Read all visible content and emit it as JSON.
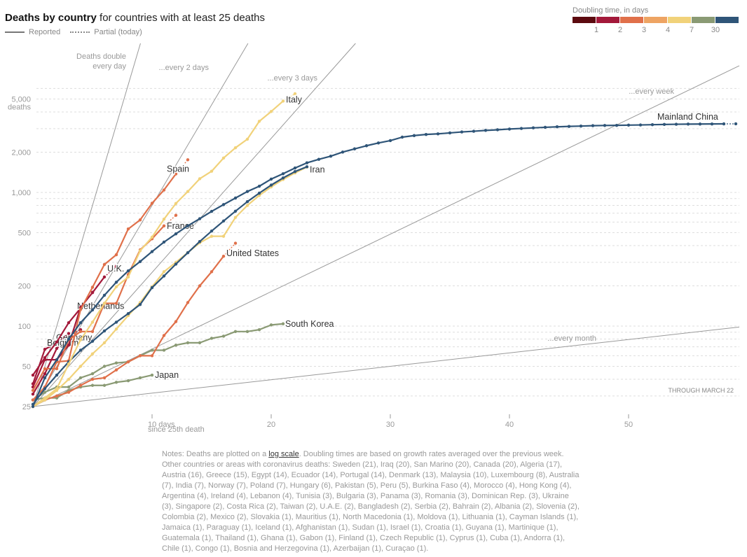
{
  "header": {
    "title_bold": "Deaths by country",
    "title_rest": " for countries with at least 25 deaths",
    "legend_reported": "Reported",
    "legend_partial": "Partial (today)"
  },
  "doubling_legend": {
    "title": "Doubling time, in days",
    "colors": [
      "#5c0a0f",
      "#a3193a",
      "#e0704a",
      "#eea463",
      "#f1d27a",
      "#8a9a74",
      "#2f5578"
    ],
    "ticks": [
      "1",
      "2",
      "3",
      "4",
      "7",
      "30"
    ]
  },
  "notes": {
    "prefix": "Notes: Deaths are plotted on a ",
    "link": "log scale",
    "suffix": ". Doubling times are based on growth rates averaged over the previous week. Other countries or areas with coronavirus deaths: Sweden (21), Iraq (20), San Marino (20), Canada (20), Algeria (17), Austria (16), Greece (15), Egypt (14), Ecuador (14), Portugal (14), Denmark (13), Malaysia (10), Luxembourg (8), Australia (7), India (7), Norway (7), Poland (7), Hungary (6), Pakistan (5), Peru (5), Burkina Faso (4), Morocco (4), Hong Kong (4), Argentina (4), Ireland (4), Lebanon (4), Tunisia (3), Bulgaria (3), Panama (3), Romania (3), Dominican Rep. (3), Ukraine (3), Singapore (2), Costa Rica (2), Taiwan (2), U.A.E. (2), Bangladesh (2), Serbia (2), Bahrain (2), Albania (2), Slovenia (2), Colombia (2), Mexico (2), Slovakia (1), Mauritius (1), North Macedonia (1), Moldova (1), Lithuania (1), Cayman Islands (1), Jamaica (1), Paraguay (1), Iceland (1), Afghanistan (1), Sudan (1), Israel (1), Croatia (1), Guyana (1), Martinique (1), Guatemala (1), Thailand (1), Ghana (1), Gabon (1), Finland (1), Czech Republic (1), Cyprus (1), Cuba (1), Andorra (1), Chile (1), Congo (1), Bosnia and Herzegovina (1), Azerbaijan (1), Curaçao (1)."
  },
  "chart_data": {
    "type": "line",
    "title": "Deaths by country for countries with at least 25 deaths",
    "xlabel": "days since 25th death",
    "ylabel": "deaths",
    "yscale": "log",
    "xlim": [
      0,
      59
    ],
    "ylim": [
      25,
      7000
    ],
    "x_ticks": [
      {
        "value": 10,
        "label": "10 days",
        "sublabel": "since 25th death"
      },
      {
        "value": 20,
        "label": "20"
      },
      {
        "value": 30,
        "label": "30"
      },
      {
        "value": 40,
        "label": "40"
      },
      {
        "value": 50,
        "label": "50"
      }
    ],
    "y_ticks": [
      {
        "value": 25,
        "label": "25"
      },
      {
        "value": 50,
        "label": "50"
      },
      {
        "value": 100,
        "label": "100"
      },
      {
        "value": 200,
        "label": "200"
      },
      {
        "value": 500,
        "label": "500"
      },
      {
        "value": 1000,
        "label": "1,000"
      },
      {
        "value": 2000,
        "label": "2,000"
      },
      {
        "value": 5000,
        "label": "5,000",
        "sublabel": "deaths"
      }
    ],
    "gridlines": [
      30,
      40,
      50,
      60,
      70,
      80,
      90,
      100,
      200,
      300,
      400,
      500,
      600,
      700,
      800,
      900,
      1000,
      2000,
      3000,
      4000,
      5000,
      6000
    ],
    "annotation": "THROUGH MARCH 22",
    "reference_lines": [
      {
        "doubling_days": 1,
        "label": "Deaths double",
        "label2": "every day"
      },
      {
        "doubling_days": 2,
        "label": "...every 2 days"
      },
      {
        "doubling_days": 3,
        "label": "...every 3 days"
      },
      {
        "doubling_days": 7,
        "label": "...every week"
      },
      {
        "doubling_days": 30,
        "label": "...every month"
      }
    ],
    "series": [
      {
        "name": "Mainland China",
        "color": "#2f5578",
        "values": [
          25,
          41,
          56,
          80,
          106,
          132,
          170,
          213,
          259,
          304,
          361,
          425,
          490,
          563,
          636,
          722,
          811,
          908,
          1016,
          1113,
          1259,
          1380,
          1523,
          1665,
          1770,
          1868,
          2004,
          2118,
          2236,
          2345,
          2442,
          2592,
          2663,
          2715,
          2744,
          2788,
          2835,
          2870,
          2912,
          2943,
          2981,
          3012,
          3042,
          3070,
          3097,
          3119,
          3136,
          3158,
          3169,
          3176,
          3189,
          3199,
          3213,
          3226,
          3237,
          3245,
          3249,
          3253,
          3259
        ],
        "partial": 3261,
        "label_pos": "above-end"
      },
      {
        "name": "Italy",
        "color": "#f1d27a",
        "values": [
          25,
          29,
          34,
          52,
          79,
          107,
          148,
          197,
          233,
          366,
          463,
          631,
          827,
          1016,
          1266,
          1441,
          1809,
          2158,
          2503,
          3405,
          4032,
          4825
        ],
        "partial": 5476,
        "label_pos": "end"
      },
      {
        "name": "Iran",
        "color": "#2f5578",
        "values": [
          26,
          34,
          43,
          54,
          66,
          77,
          92,
          107,
          124,
          145,
          194,
          237,
          291,
          354,
          429,
          514,
          611,
          724,
          853,
          988,
          1135,
          1284,
          1433,
          1556
        ],
        "label_pos": "end"
      },
      {
        "name": "Iran (2nd)",
        "color": "#f1d27a",
        "hidden_label": true,
        "values": [
          25,
          28,
          33,
          40,
          50,
          62,
          75,
          95,
          120,
          150,
          197,
          255,
          300,
          355,
          420,
          470,
          470,
          650,
          800,
          950,
          1100,
          1250,
          1400,
          1550
        ],
        "label_pos": "none"
      },
      {
        "name": "Spain",
        "color": "#e0704a",
        "values": [
          28,
          35,
          54,
          55,
          133,
          195,
          289,
          342,
          533,
          623,
          830,
          1043,
          1375
        ],
        "partial": 1756,
        "label_pos": "end"
      },
      {
        "name": "France",
        "color": "#e0704a",
        "values": [
          33,
          48,
          48,
          79,
          91,
          91,
          148,
          148,
          243,
          372,
          450,
          562
        ],
        "partial": 674,
        "label_pos": "end"
      },
      {
        "name": "United States",
        "color": "#e0704a",
        "values": [
          25,
          28,
          30,
          32,
          36,
          40,
          41,
          47,
          54,
          60,
          60,
          85,
          108,
          150,
          200,
          255,
          333
        ],
        "partial": 417,
        "label_pos": "end"
      },
      {
        "name": "U.K.",
        "color": "#a3193a",
        "values": [
          35,
          56,
          56,
          72,
          138,
          178,
          233
        ],
        "partial": 281,
        "label_pos": "end"
      },
      {
        "name": "Netherlands",
        "color": "#a3193a",
        "values": [
          43,
          58,
          76,
          106,
          136
        ],
        "partial": 179,
        "label_pos": "end"
      },
      {
        "name": "Belgium",
        "color": "#a3193a",
        "values": [
          37,
          67,
          75
        ],
        "partial": 88,
        "label_pos": "end"
      },
      {
        "name": "Germany",
        "color": "#a3193a",
        "values": [
          31,
          44,
          68,
          84
        ],
        "partial": 94,
        "label_pos": "end"
      },
      {
        "name": "South Korea",
        "color": "#8a9a74",
        "values": [
          28,
          32,
          35,
          35,
          41,
          44,
          50,
          53,
          54,
          60,
          66,
          66,
          72,
          75,
          75,
          81,
          84,
          91,
          91,
          94,
          102,
          104
        ],
        "label_pos": "end"
      },
      {
        "name": "Japan",
        "color": "#8a9a74",
        "values": [
          28,
          29,
          29,
          33,
          35,
          36,
          36,
          38,
          39,
          41,
          43
        ],
        "label_pos": "end"
      }
    ]
  }
}
